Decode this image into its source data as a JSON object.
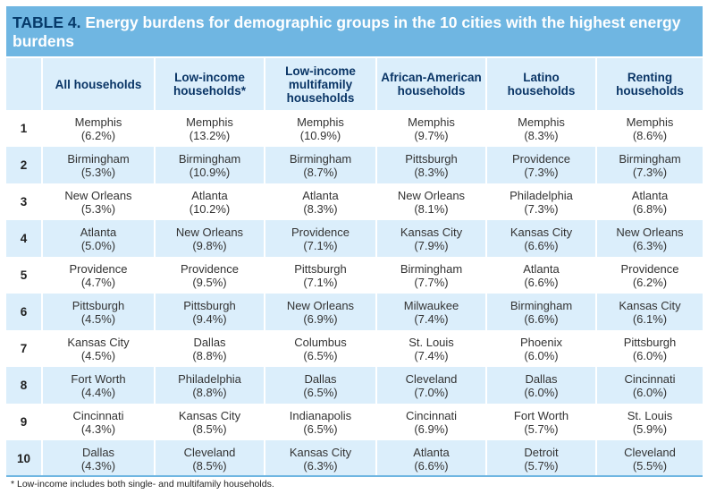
{
  "title": {
    "label": "TABLE 4.",
    "text": " Energy burdens for demographic groups in the 10 cities with the highest energy burdens"
  },
  "columns": [
    "All households",
    "Low-income households*",
    "Low-income multifamily households",
    "African-American households",
    "Latino households",
    "Renting households"
  ],
  "rows": [
    {
      "rank": "1",
      "cells": [
        [
          "Memphis",
          "(6.2%)"
        ],
        [
          "Memphis",
          "(13.2%)"
        ],
        [
          "Memphis",
          "(10.9%)"
        ],
        [
          "Memphis",
          "(9.7%)"
        ],
        [
          "Memphis",
          "(8.3%)"
        ],
        [
          "Memphis",
          "(8.6%)"
        ]
      ]
    },
    {
      "rank": "2",
      "cells": [
        [
          "Birmingham",
          "(5.3%)"
        ],
        [
          "Birmingham",
          "(10.9%)"
        ],
        [
          "Birmingham",
          "(8.7%)"
        ],
        [
          "Pittsburgh",
          "(8.3%)"
        ],
        [
          "Providence",
          "(7.3%)"
        ],
        [
          "Birmingham",
          "(7.3%)"
        ]
      ]
    },
    {
      "rank": "3",
      "cells": [
        [
          "New Orleans",
          "(5.3%)"
        ],
        [
          "Atlanta",
          "(10.2%)"
        ],
        [
          "Atlanta",
          "(8.3%)"
        ],
        [
          "New Orleans",
          "(8.1%)"
        ],
        [
          "Philadelphia",
          "(7.3%)"
        ],
        [
          "Atlanta",
          "(6.8%)"
        ]
      ]
    },
    {
      "rank": "4",
      "cells": [
        [
          "Atlanta",
          "(5.0%)"
        ],
        [
          "New Orleans",
          "(9.8%)"
        ],
        [
          "Providence",
          "(7.1%)"
        ],
        [
          "Kansas City",
          "(7.9%)"
        ],
        [
          "Kansas City",
          "(6.6%)"
        ],
        [
          "New Orleans",
          "(6.3%)"
        ]
      ]
    },
    {
      "rank": "5",
      "cells": [
        [
          "Providence",
          "(4.7%)"
        ],
        [
          "Providence",
          "(9.5%)"
        ],
        [
          "Pittsburgh",
          "(7.1%)"
        ],
        [
          "Birmingham",
          "(7.7%)"
        ],
        [
          "Atlanta",
          "(6.6%)"
        ],
        [
          "Providence",
          "(6.2%)"
        ]
      ]
    },
    {
      "rank": "6",
      "cells": [
        [
          "Pittsburgh",
          "(4.5%)"
        ],
        [
          "Pittsburgh",
          "(9.4%)"
        ],
        [
          "New Orleans",
          "(6.9%)"
        ],
        [
          "Milwaukee",
          "(7.4%)"
        ],
        [
          "Birmingham",
          "(6.6%)"
        ],
        [
          "Kansas City",
          "(6.1%)"
        ]
      ]
    },
    {
      "rank": "7",
      "cells": [
        [
          "Kansas City",
          "(4.5%)"
        ],
        [
          "Dallas",
          "(8.8%)"
        ],
        [
          "Columbus",
          "(6.5%)"
        ],
        [
          "St. Louis",
          "(7.4%)"
        ],
        [
          "Phoenix",
          "(6.0%)"
        ],
        [
          "Pittsburgh",
          "(6.0%)"
        ]
      ]
    },
    {
      "rank": "8",
      "cells": [
        [
          "Fort Worth",
          "(4.4%)"
        ],
        [
          "Philadelphia",
          "(8.8%)"
        ],
        [
          "Dallas",
          "(6.5%)"
        ],
        [
          "Cleveland",
          "(7.0%)"
        ],
        [
          "Dallas",
          "(6.0%)"
        ],
        [
          "Cincinnati",
          "(6.0%)"
        ]
      ]
    },
    {
      "rank": "9",
      "cells": [
        [
          "Cincinnati",
          "(4.3%)"
        ],
        [
          "Kansas City",
          "(8.5%)"
        ],
        [
          "Indianapolis",
          "(6.5%)"
        ],
        [
          "Cincinnati",
          "(6.9%)"
        ],
        [
          "Fort Worth",
          "(5.7%)"
        ],
        [
          "St. Louis",
          "(5.9%)"
        ]
      ]
    },
    {
      "rank": "10",
      "cells": [
        [
          "Dallas",
          "(4.3%)"
        ],
        [
          "Cleveland",
          "(8.5%)"
        ],
        [
          "Kansas City",
          "(6.3%)"
        ],
        [
          "Atlanta",
          "(6.6%)"
        ],
        [
          "Detroit",
          "(5.7%)"
        ],
        [
          "Cleveland",
          "(5.5%)"
        ]
      ]
    }
  ],
  "footnote": "* Low-income includes both single- and multifamily households.",
  "colors": {
    "title_bg": "#6fb6e2",
    "title_label": "#063a6a",
    "stripe": "#dbeefb",
    "header_text": "#0a3566"
  }
}
